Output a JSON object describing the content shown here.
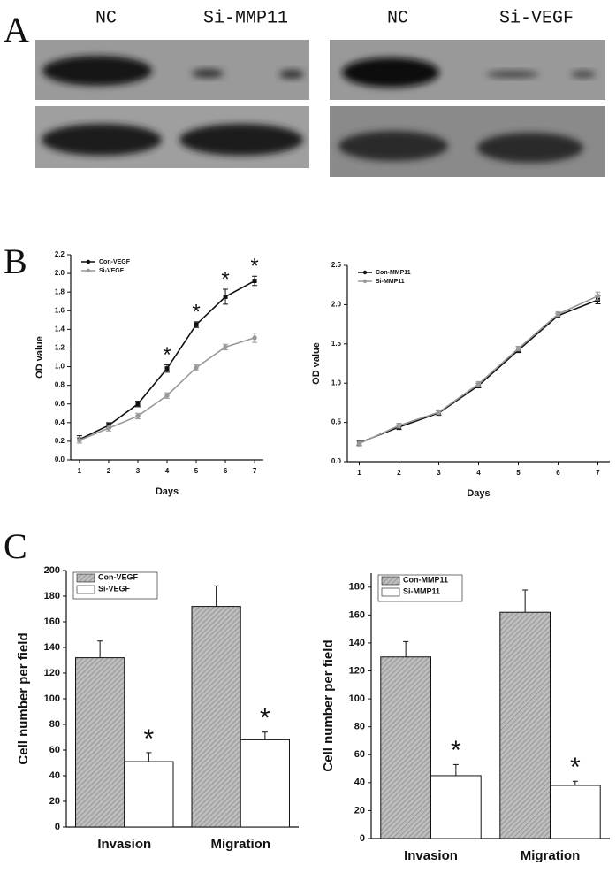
{
  "panel_labels": [
    "A",
    "B",
    "C"
  ],
  "blots": [
    {
      "lanes": [
        "NC",
        "Si-MMP11"
      ]
    },
    {
      "lanes": [
        "NC",
        "Si-VEGF"
      ]
    }
  ],
  "chart_data": [
    {
      "type": "line",
      "x_label": "Days",
      "y_label": "OD value",
      "legend": "upper left",
      "x": [
        1,
        2,
        3,
        4,
        5,
        6,
        7
      ],
      "xlim": [
        0.7,
        7.3
      ],
      "xticks": [
        1,
        2,
        3,
        4,
        5,
        6,
        7
      ],
      "ylim": [
        0,
        2.2
      ],
      "yticks": [
        {
          "value": 0,
          "label": "0.0"
        },
        0.2,
        0.4,
        0.6,
        0.8,
        {
          "value": 1,
          "label": "1.0"
        },
        1.2,
        1.4,
        1.6,
        1.8,
        {
          "value": 2,
          "label": "2.0"
        },
        2.2
      ],
      "series": [
        {
          "name": "Con-VEGF",
          "color": "#111111",
          "values": [
            0.22,
            0.37,
            0.6,
            0.98,
            1.45,
            1.75,
            1.92
          ],
          "errors": [
            0.04,
            0.03,
            0.03,
            0.04,
            0.03,
            0.08,
            0.05
          ],
          "significance": [
            null,
            null,
            null,
            "*",
            "*",
            "*",
            "*"
          ]
        },
        {
          "name": "Si-VEGF",
          "color": "#999999",
          "values": [
            0.21,
            0.34,
            0.47,
            0.69,
            0.99,
            1.21,
            1.31
          ],
          "errors": [
            0.03,
            0.03,
            0.03,
            0.03,
            0.03,
            0.03,
            0.05
          ]
        }
      ]
    },
    {
      "type": "line",
      "x_label": "Days",
      "y_label": "OD value",
      "legend": "upper left",
      "x": [
        1,
        2,
        3,
        4,
        5,
        6,
        7
      ],
      "xlim": [
        0.7,
        7.3
      ],
      "xticks": [
        1,
        2,
        3,
        4,
        5,
        6,
        7
      ],
      "ylim": [
        0,
        2.5
      ],
      "yticks": [
        {
          "value": 0,
          "label": "0.0"
        },
        0.5,
        {
          "value": 1,
          "label": "1.0"
        },
        1.5,
        {
          "value": 2,
          "label": "2.0"
        },
        2.5
      ],
      "series": [
        {
          "name": "Con-MMP11",
          "color": "#111111",
          "values": [
            0.24,
            0.44,
            0.62,
            0.97,
            1.42,
            1.86,
            2.06
          ],
          "errors": [
            0.03,
            0.03,
            0.03,
            0.03,
            0.03,
            0.03,
            0.05
          ]
        },
        {
          "name": "Si-MMP11",
          "color": "#999999",
          "values": [
            0.23,
            0.46,
            0.63,
            0.99,
            1.44,
            1.88,
            2.11
          ],
          "errors": [
            0.03,
            0.03,
            0.03,
            0.03,
            0.03,
            0.03,
            0.05
          ]
        }
      ]
    },
    {
      "type": "bar",
      "y_label": "Cell number per field",
      "legend": "upper left",
      "categories": [
        "Invasion",
        "Migration"
      ],
      "ylim": [
        0,
        200
      ],
      "yticks": [
        0,
        20,
        40,
        60,
        80,
        100,
        120,
        140,
        160,
        180,
        200
      ],
      "series": [
        {
          "name": "Con-VEGF",
          "color": "#bdbdbd",
          "values": [
            132,
            172
          ],
          "errors": [
            13,
            16
          ]
        },
        {
          "name": "Si-VEGF",
          "color": "#ffffff",
          "values": [
            51,
            68
          ],
          "errors": [
            7,
            6
          ],
          "significance": [
            "*",
            "*"
          ]
        }
      ]
    },
    {
      "type": "bar",
      "y_label": "Cell number per field",
      "legend": "upper left",
      "categories": [
        "Invasion",
        "Migration"
      ],
      "ylim": [
        0,
        190
      ],
      "yticks": [
        0,
        20,
        40,
        60,
        80,
        100,
        120,
        140,
        160,
        180
      ],
      "series": [
        {
          "name": "Con-MMP11",
          "color": "#bdbdbd",
          "values": [
            130,
            162
          ],
          "errors": [
            11,
            16
          ]
        },
        {
          "name": "Si-MMP11",
          "color": "#ffffff",
          "values": [
            45,
            38
          ],
          "errors": [
            8,
            3
          ],
          "significance": [
            "*",
            "*"
          ]
        }
      ]
    }
  ]
}
